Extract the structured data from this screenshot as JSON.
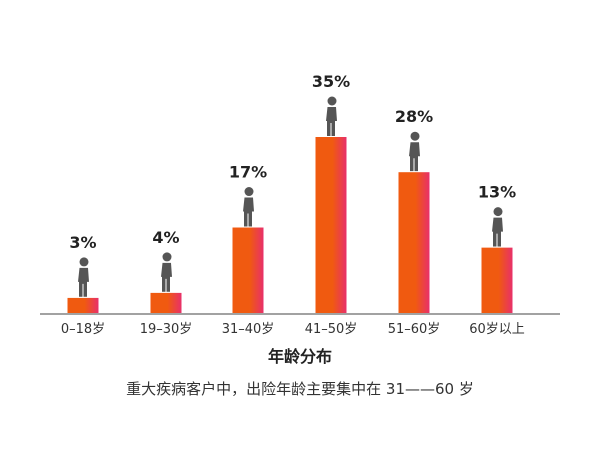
{
  "chart_data": {
    "type": "bar",
    "categories": [
      "0–18岁",
      "19–30岁",
      "31–40岁",
      "41–50岁",
      "51–60岁",
      "60岁以上"
    ],
    "values": [
      3,
      4,
      17,
      35,
      28,
      13
    ],
    "value_labels": [
      "3%",
      "4%",
      "17%",
      "35%",
      "28%",
      "13%"
    ],
    "title": "年龄分布",
    "caption": "重大疾病客户中，出险年龄主要集中在 31——60 岁",
    "ylim": [
      0,
      35
    ],
    "grid": false,
    "legend": "none",
    "bar_gradient": [
      "#f05a10",
      "#e8306a"
    ],
    "figure_color": "#555555"
  }
}
